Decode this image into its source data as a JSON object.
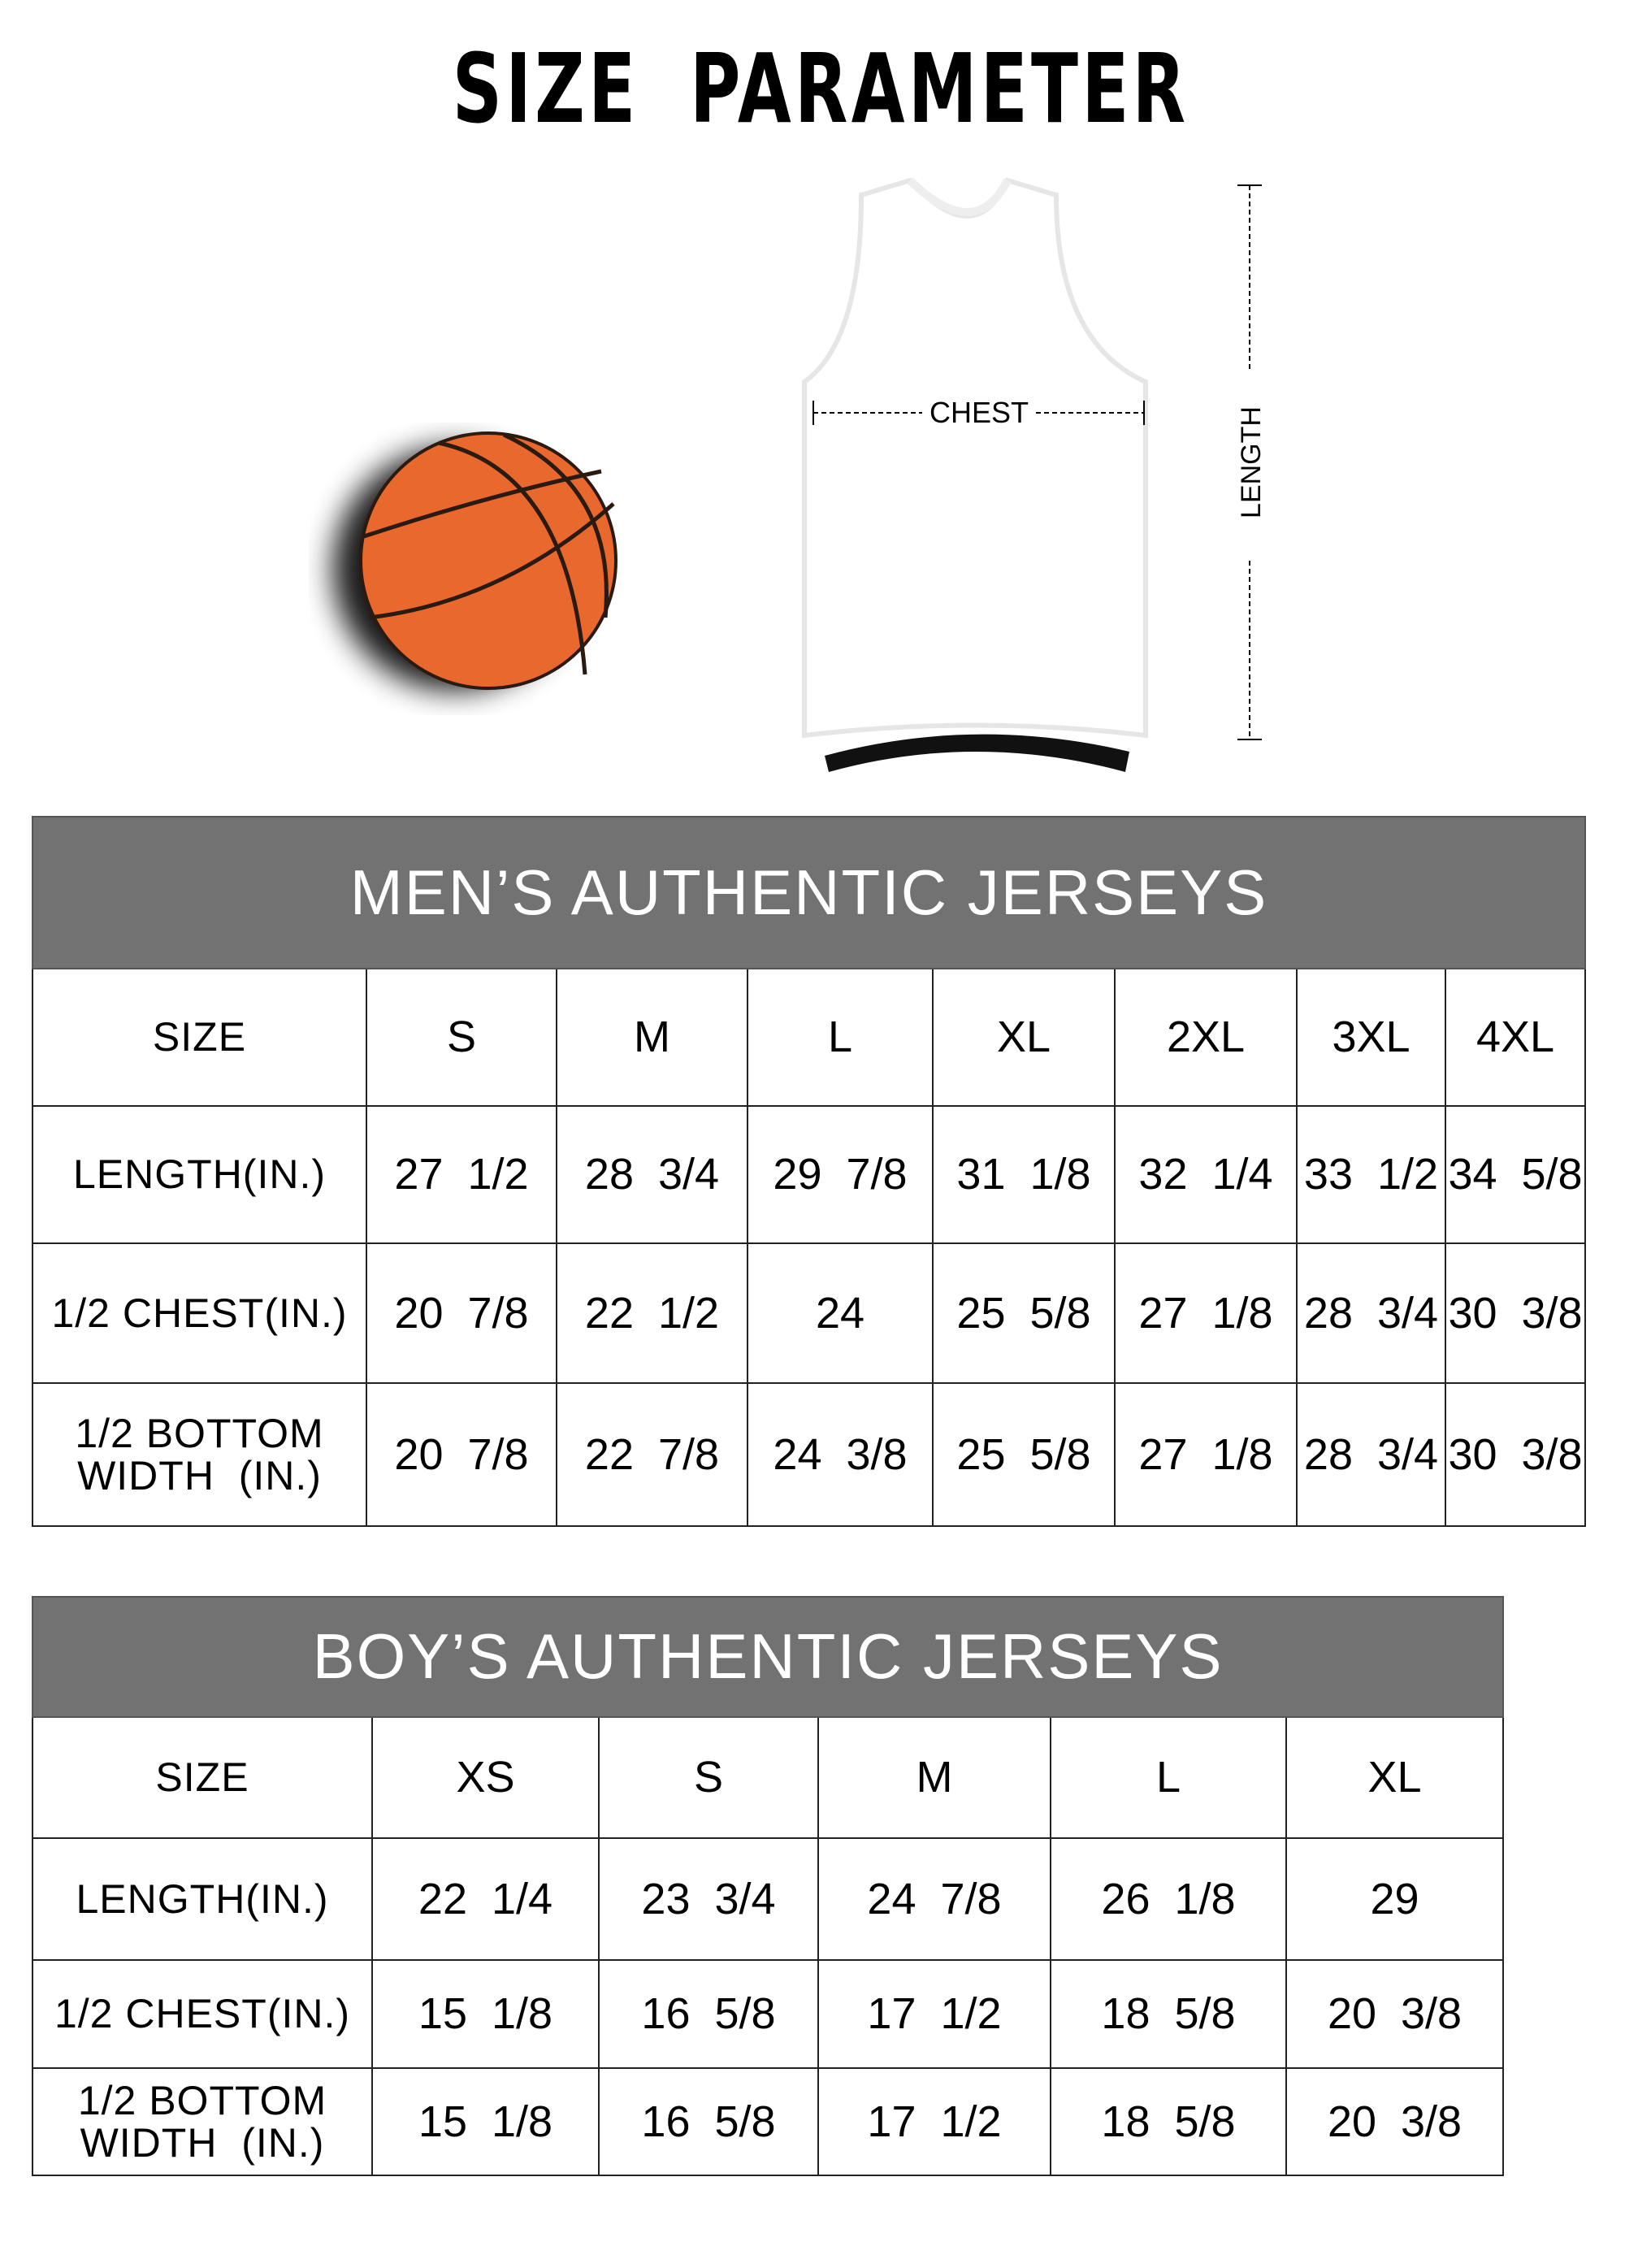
{
  "title": "SIZE PARAMETER",
  "diagram": {
    "chest_label": "CHEST",
    "length_label": "LENGTH",
    "colors": {
      "ball": "#e8682d",
      "header_bg": "#727272"
    }
  },
  "men": {
    "title": "MEN’S AUTHENTIC JERSEYS",
    "header": [
      "SIZE",
      "S",
      "M",
      "L",
      "XL",
      "2XL",
      "3XL",
      "4XL"
    ],
    "rows": [
      [
        "LENGTH(IN.)",
        "27  1/2",
        "28  3/4",
        "29  7/8",
        "31  1/8",
        "32  1/4",
        "33  1/2",
        "34  5/8"
      ],
      [
        "1/2 CHEST(IN.)",
        "20  7/8",
        "22  1/2",
        "24",
        "25  5/8",
        "27  1/8",
        "28  3/4",
        "30  3/8"
      ],
      [
        "1/2 BOTTOM WIDTH  (IN.)",
        "20  7/8",
        "22  7/8",
        "24  3/8",
        "25  5/8",
        "27  1/8",
        "28  3/4",
        "30  3/8"
      ]
    ]
  },
  "boy": {
    "title": "BOY’S AUTHENTIC JERSEYS",
    "header": [
      "SIZE",
      "XS",
      "S",
      "M",
      "L",
      "XL"
    ],
    "rows": [
      [
        "LENGTH(IN.)",
        "22  1/4",
        "23  3/4",
        "24  7/8",
        "26  1/8",
        "29"
      ],
      [
        "1/2 CHEST(IN.)",
        "15  1/8",
        "16  5/8",
        "17  1/2",
        "18  5/8",
        "20  3/8"
      ],
      [
        "1/2 BOTTOM WIDTH  (IN.)",
        "15  1/8",
        "16  5/8",
        "17  1/2",
        "18  5/8",
        "20  3/8"
      ]
    ]
  }
}
